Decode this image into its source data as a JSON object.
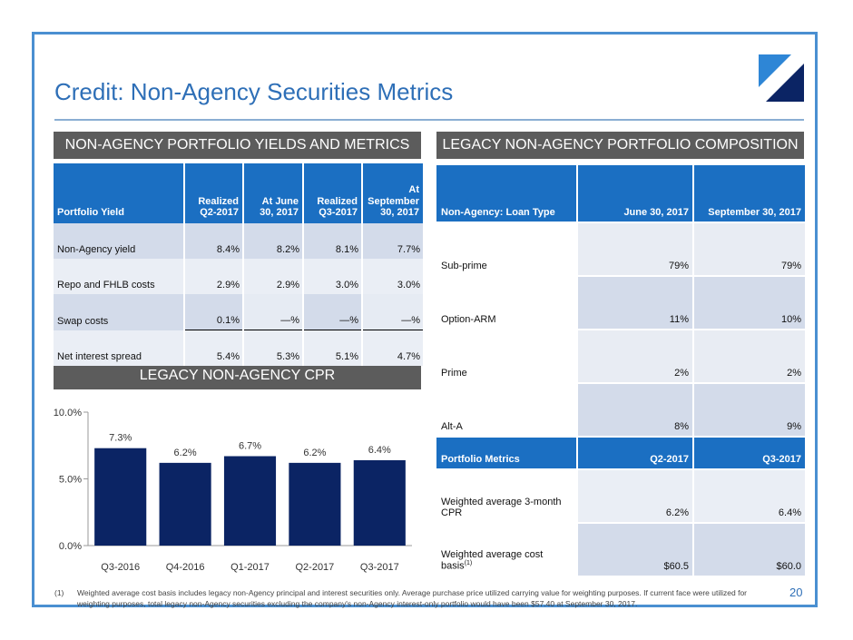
{
  "title": "Credit: Non-Agency Securities Metrics",
  "left_banner": "NON-AGENCY PORTFOLIO YIELDS AND METRICS",
  "right_banner": "LEGACY NON-AGENCY PORTFOLIO COMPOSITION",
  "cpr_banner": "LEGACY NON-AGENCY CPR",
  "yield_table": {
    "headers": [
      "Portfolio Yield",
      "Realized Q2-2017",
      "At June 30, 2017",
      "Realized Q3-2017",
      "At September 30, 2017"
    ],
    "rows": [
      {
        "label": "Non-Agency yield",
        "values": [
          "8.4",
          "8.2",
          "8.1",
          "7.7"
        ]
      },
      {
        "label": "Repo and FHLB costs",
        "values": [
          "2.9",
          "2.9",
          "3.0",
          "3.0"
        ]
      },
      {
        "label": "Swap costs",
        "values": [
          "0.1",
          "—",
          "—",
          "—"
        ]
      },
      {
        "label": "Net interest spread",
        "values": [
          "5.4",
          "5.3",
          "5.1",
          "4.7"
        ]
      }
    ]
  },
  "composition_table": {
    "headers": [
      "Non-Agency: Loan Type",
      "June 30, 2017",
      "September 30, 2017"
    ],
    "rows": [
      {
        "label": "Sub-prime",
        "values": [
          "79%",
          "79%"
        ]
      },
      {
        "label": "Option-ARM",
        "values": [
          "11%",
          "10%"
        ]
      },
      {
        "label": "Prime",
        "values": [
          "2%",
          "2%"
        ]
      },
      {
        "label": "Alt-A",
        "values": [
          "8%",
          "9%"
        ]
      }
    ],
    "metrics_headers": [
      "Portfolio Metrics",
      "Q2-2017",
      "Q3-2017"
    ],
    "metrics_rows": [
      {
        "label": "Weighted average 3-month CPR",
        "values": [
          "6.2",
          "6.4"
        ]
      },
      {
        "label": "Weighted average cost basis",
        "sup": "(1)",
        "values": [
          "$60.5",
          "$60.0"
        ]
      }
    ]
  },
  "chart_data": {
    "type": "bar",
    "categories": [
      "Q3-2016",
      "Q4-2016",
      "Q1-2017",
      "Q2-2017",
      "Q3-2017"
    ],
    "values": [
      7.3,
      6.2,
      6.7,
      6.2,
      6.4
    ],
    "data_labels": [
      "7.3%",
      "6.2%",
      "6.7%",
      "6.2%",
      "6.4%"
    ],
    "y_ticks": [
      "0.0%",
      "5.0%",
      "10.0%"
    ],
    "y_tick_values": [
      0,
      5,
      10
    ],
    "ylim": [
      0,
      10
    ],
    "bar_color": "#0b2464",
    "grid": false
  },
  "footnote": {
    "num": "(1)",
    "text": "Weighted average cost basis includes legacy non-Agency principal and interest securities only.  Average purchase price utilized carrying value for weighting purposes.  If current face were utilized for weighting purposes, total legacy non-Agency securities excluding the company's non-Agency interest-only portfolio would have been $57.40 at September 30, 2017."
  },
  "page_number": "20",
  "colors": {
    "title": "#2e6fb7",
    "frame": "#4a8fd1",
    "header_blue": "#1b6fc2",
    "bar": "#0b2464",
    "banner": "#5c5c5c"
  }
}
